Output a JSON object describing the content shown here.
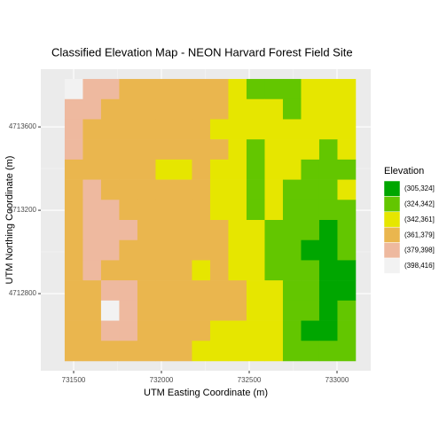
{
  "chart_data": {
    "type": "raster",
    "title": "Classified Elevation Map - NEON Harvard Forest Field Site",
    "x_label": "UTM Easting Coordinate (m)",
    "y_label": "UTM Northing Coordinate (m)",
    "xlim": [
      731313,
      733192
    ],
    "ylim": [
      4712430,
      4713877
    ],
    "xticks": [
      731500,
      732000,
      732500,
      733000
    ],
    "yticks": [
      4712800,
      4713200,
      4713600
    ],
    "extent": [
      731449,
      733106,
      4712477,
      4713830
    ],
    "grid": true,
    "legend_title": "Elevation",
    "legend_position": "right",
    "classes": [
      {
        "label": "(305,324]",
        "color": "#00A600"
      },
      {
        "label": "(324,342]",
        "color": "#63C600"
      },
      {
        "label": "(342,361]",
        "color": "#E6E600"
      },
      {
        "label": "(361,379]",
        "color": "#EAB64E"
      },
      {
        "label": "(379,398]",
        "color": "#EEB99F"
      },
      {
        "label": "(398,416]",
        "color": "#F2F2F2"
      }
    ],
    "cells": [
      [
        5,
        4,
        4,
        3,
        3,
        3,
        3,
        3,
        3,
        2,
        1,
        1,
        1,
        2,
        2,
        2
      ],
      [
        4,
        4,
        3,
        3,
        3,
        3,
        3,
        3,
        3,
        2,
        2,
        2,
        1,
        2,
        2,
        2
      ],
      [
        4,
        3,
        3,
        3,
        3,
        3,
        3,
        3,
        2,
        2,
        2,
        2,
        2,
        2,
        2,
        2
      ],
      [
        4,
        3,
        3,
        3,
        3,
        3,
        3,
        3,
        3,
        2,
        1,
        2,
        2,
        2,
        1,
        2
      ],
      [
        3,
        3,
        3,
        3,
        3,
        2,
        2,
        3,
        2,
        2,
        1,
        2,
        2,
        1,
        1,
        1
      ],
      [
        3,
        4,
        3,
        3,
        3,
        3,
        3,
        3,
        2,
        2,
        1,
        2,
        1,
        1,
        1,
        2
      ],
      [
        3,
        4,
        4,
        3,
        3,
        3,
        3,
        3,
        2,
        2,
        1,
        2,
        1,
        1,
        1,
        1
      ],
      [
        3,
        4,
        4,
        4,
        3,
        3,
        3,
        3,
        3,
        2,
        2,
        1,
        1,
        1,
        0,
        1
      ],
      [
        3,
        4,
        4,
        3,
        3,
        3,
        3,
        3,
        3,
        2,
        2,
        1,
        1,
        0,
        0,
        1
      ],
      [
        3,
        4,
        3,
        3,
        3,
        3,
        3,
        2,
        3,
        2,
        2,
        1,
        1,
        1,
        0,
        0
      ],
      [
        3,
        3,
        4,
        4,
        3,
        3,
        3,
        3,
        3,
        3,
        2,
        2,
        1,
        1,
        0,
        0
      ],
      [
        3,
        3,
        5,
        4,
        3,
        3,
        3,
        3,
        3,
        3,
        2,
        2,
        1,
        1,
        0,
        1
      ],
      [
        3,
        3,
        4,
        4,
        3,
        3,
        3,
        3,
        2,
        2,
        2,
        2,
        1,
        0,
        0,
        1
      ],
      [
        3,
        3,
        3,
        3,
        3,
        3,
        3,
        2,
        2,
        2,
        2,
        2,
        1,
        1,
        1,
        1
      ]
    ]
  }
}
